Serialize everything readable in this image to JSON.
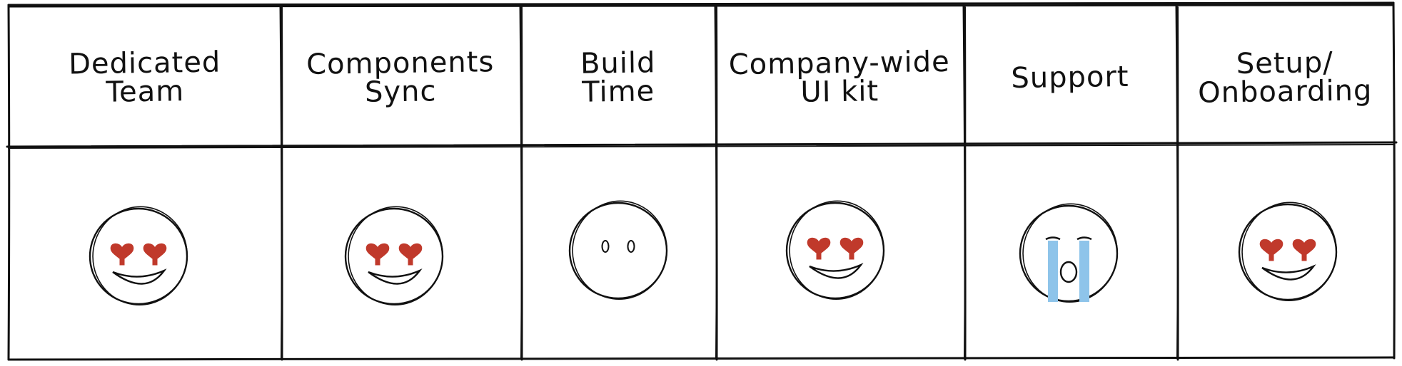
{
  "table": {
    "columns": [
      {
        "id": "dedicated-team",
        "label": "Dedicated\nTeam",
        "rating": "heart-eyes"
      },
      {
        "id": "components-sync",
        "label": "Components\nSync",
        "rating": "heart-eyes"
      },
      {
        "id": "build-time",
        "label": "Build\nTime",
        "rating": "neutral"
      },
      {
        "id": "company-wide-ui-kit",
        "label": "Company-wide\nUI kit",
        "rating": "heart-eyes"
      },
      {
        "id": "support",
        "label": "Support",
        "rating": "crying"
      },
      {
        "id": "setup-onboarding",
        "label": "Setup/\nOnboarding",
        "rating": "heart-eyes"
      }
    ]
  },
  "colors": {
    "ink": "#111111",
    "heart": "#c0392b",
    "tears": "#8ec4ea"
  }
}
